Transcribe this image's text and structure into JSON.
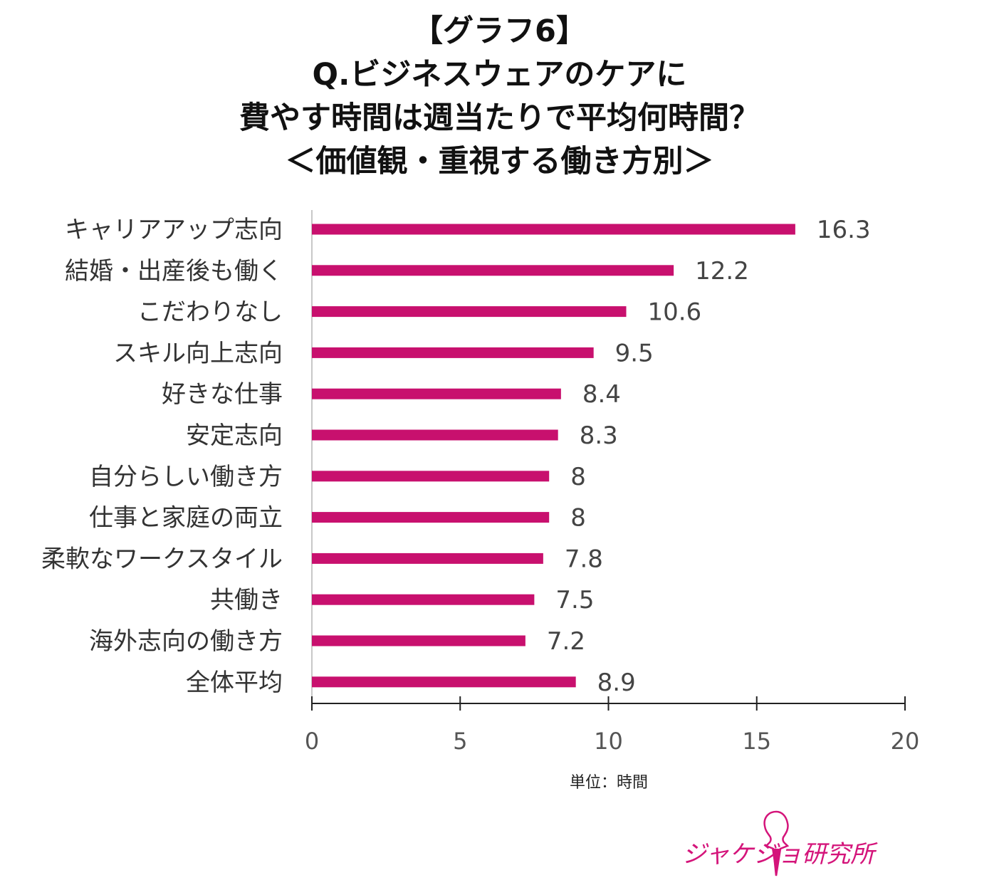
{
  "title_lines": [
    "【グラフ6】",
    "Q.ビジネスウェアのケアに",
    "費やす時間は週当たりで平均何時間？",
    "＜価値観・重視する働き方別＞"
  ],
  "chart_data": {
    "type": "bar",
    "orientation": "horizontal",
    "categories": [
      "キャリアアップ志向",
      "結婚・出産後も働く",
      "こだわりなし",
      "スキル向上志向",
      "好きな仕事",
      "安定志向",
      "自分らしい働き方",
      "仕事と家庭の両立",
      "柔軟なワークスタイル",
      "共働き",
      "海外志向の働き方",
      "全体平均"
    ],
    "values": [
      16.3,
      12.2,
      10.6,
      9.5,
      8.4,
      8.3,
      8,
      8,
      7.8,
      7.5,
      7.2,
      8.9
    ],
    "value_labels": [
      "16.3",
      "12.2",
      "10.6",
      "9.5",
      "8.4",
      "8.3",
      "8",
      "8",
      "7.8",
      "7.5",
      "7.2",
      "8.9"
    ],
    "xlim": [
      0,
      20
    ],
    "xticks": [
      "0",
      "5",
      "10",
      "15",
      "20"
    ],
    "xtick_values": [
      0,
      5,
      10,
      15,
      20
    ],
    "unit_label": "単位：時間",
    "bar_color": "#c8106e",
    "grid": false
  },
  "logo": {
    "text": "ジャケジョ研究所",
    "color": "#d4147a"
  }
}
